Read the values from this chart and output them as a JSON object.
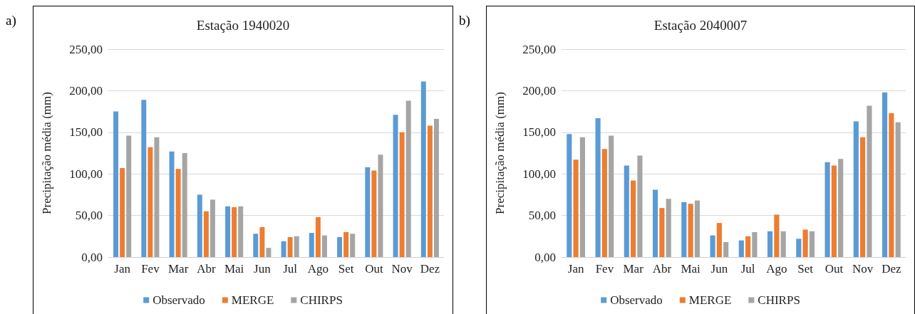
{
  "chart_data": [
    {
      "type": "bar",
      "title": "Estação 1940020",
      "ylabel": "Precipitação média (mm)",
      "annotations": [
        "a)"
      ],
      "categories": [
        "Jan",
        "Fev",
        "Mar",
        "Abr",
        "Mai",
        "Jun",
        "Jul",
        "Ago",
        "Set",
        "Out",
        "Nov",
        "Dez"
      ],
      "series": [
        {
          "name": "Observado",
          "color": "#5b9bd5",
          "values": [
            175,
            189,
            127,
            75,
            61,
            28,
            19,
            29,
            24,
            108,
            171,
            211
          ]
        },
        {
          "name": "MERGE",
          "color": "#ed7d31",
          "values": [
            107,
            132,
            106,
            55,
            60,
            36,
            24,
            48,
            30,
            104,
            150,
            158
          ]
        },
        {
          "name": "CHIRPS",
          "color": "#a5a5a5",
          "values": [
            146,
            144,
            125,
            69,
            61,
            11,
            25,
            26,
            28,
            123,
            188,
            166
          ]
        }
      ],
      "ylim": [
        0,
        250
      ],
      "yticks": [
        {
          "value": 0,
          "label": "0,00"
        },
        {
          "value": 50,
          "label": "50,00"
        },
        {
          "value": 100,
          "label": "100,00"
        },
        {
          "value": 150,
          "label": "150,00"
        },
        {
          "value": 200,
          "label": "200,00"
        },
        {
          "value": 250,
          "label": "250,00"
        }
      ],
      "grid": "y",
      "legend": "bottom"
    },
    {
      "type": "bar",
      "title": "Estação 2040007",
      "ylabel": "Precipitação média (mm)",
      "annotations": [
        "b)"
      ],
      "categories": [
        "Jan",
        "Fev",
        "Mar",
        "Abr",
        "Mai",
        "Jun",
        "Jul",
        "Ago",
        "Set",
        "Out",
        "Nov",
        "Dez"
      ],
      "series": [
        {
          "name": "Observado",
          "color": "#5b9bd5",
          "values": [
            148,
            167,
            110,
            81,
            66,
            26,
            20,
            31,
            22,
            114,
            163,
            198
          ]
        },
        {
          "name": "MERGE",
          "color": "#ed7d31",
          "values": [
            117,
            130,
            92,
            59,
            64,
            41,
            25,
            51,
            33,
            110,
            144,
            173
          ]
        },
        {
          "name": "CHIRPS",
          "color": "#a5a5a5",
          "values": [
            144,
            146,
            122,
            70,
            68,
            18,
            30,
            31,
            31,
            118,
            182,
            162
          ]
        }
      ],
      "ylim": [
        0,
        250
      ],
      "yticks": [
        {
          "value": 0,
          "label": "0,00"
        },
        {
          "value": 50,
          "label": "50,00"
        },
        {
          "value": 100,
          "label": "100,00"
        },
        {
          "value": 150,
          "label": "150,00"
        },
        {
          "value": 200,
          "label": "200,00"
        },
        {
          "value": 250,
          "label": "250,00"
        }
      ],
      "grid": "y",
      "legend": "bottom"
    }
  ]
}
